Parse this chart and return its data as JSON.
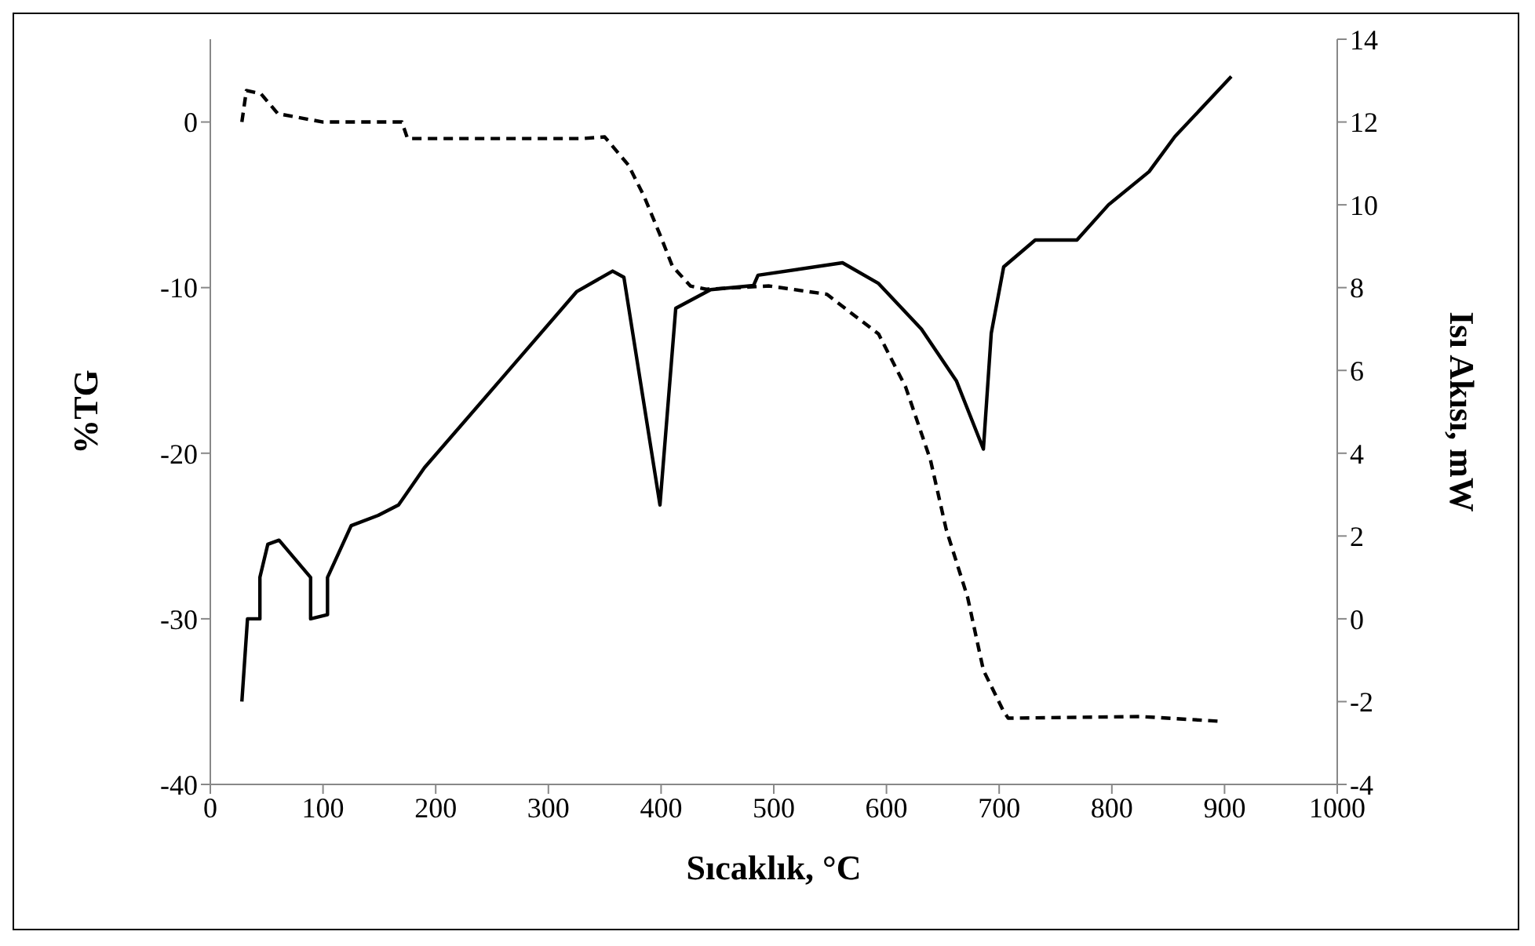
{
  "chart_data": {
    "type": "line",
    "xlabel": "Sıcaklık, °C",
    "ylabel": "%TG",
    "y2label": "Isı Akısı, mW",
    "xlim": [
      0,
      1000
    ],
    "xticks": [
      0,
      100,
      200,
      300,
      400,
      500,
      600,
      700,
      800,
      900,
      1000
    ],
    "ylim": [
      -40,
      5
    ],
    "yticks": [
      -40,
      -30,
      -20,
      -10,
      0
    ],
    "y2lim": [
      -4,
      14
    ],
    "y2ticks": [
      -4,
      -2,
      0,
      2,
      4,
      6,
      8,
      10,
      12,
      14
    ],
    "grid": false,
    "legend": false,
    "marker": "none",
    "series": [
      {
        "color": "#000000",
        "line_style": "dashed",
        "x": [
          28,
          32,
          45,
          60,
          100,
          170,
          175,
          250,
          330,
          350,
          371,
          385,
          399,
          410,
          426,
          440,
          496,
          547,
          593,
          617,
          639,
          653,
          672,
          686,
          704,
          708,
          825,
          899
        ],
        "values": [
          0,
          1.9,
          1.7,
          0.5,
          0,
          0,
          -1,
          -1,
          -1,
          -0.9,
          -2.6,
          -4.5,
          -6.8,
          -8.7,
          -9.9,
          -10.1,
          -9.9,
          -10.4,
          -12.8,
          -16,
          -20.4,
          -24.6,
          -28.7,
          -33.1,
          -35.6,
          -36,
          -35.9,
          -36.2
        ]
      },
      {
        "color": "#000000",
        "line_style": "solid",
        "axis": "y2",
        "x": [
          28,
          33,
          44,
          44,
          51,
          61,
          89,
          89,
          104,
          104,
          125,
          149,
          167,
          190,
          260,
          325,
          357,
          367,
          399,
          413,
          444,
          482,
          486,
          561,
          593,
          631,
          662,
          686,
          693,
          704,
          732,
          769,
          797,
          833,
          856,
          906
        ],
        "values": [
          -2,
          0,
          0,
          1,
          1.8,
          1.9,
          1,
          0,
          0.1,
          1,
          2.25,
          2.5,
          2.75,
          3.65,
          5.85,
          7.9,
          8.4,
          8.25,
          2.75,
          7.5,
          7.95,
          8.05,
          8.3,
          8.6,
          8.1,
          7,
          5.75,
          4.1,
          6.9,
          8.5,
          9.15,
          9.15,
          10,
          10.8,
          11.65,
          13.1
        ]
      }
    ]
  }
}
